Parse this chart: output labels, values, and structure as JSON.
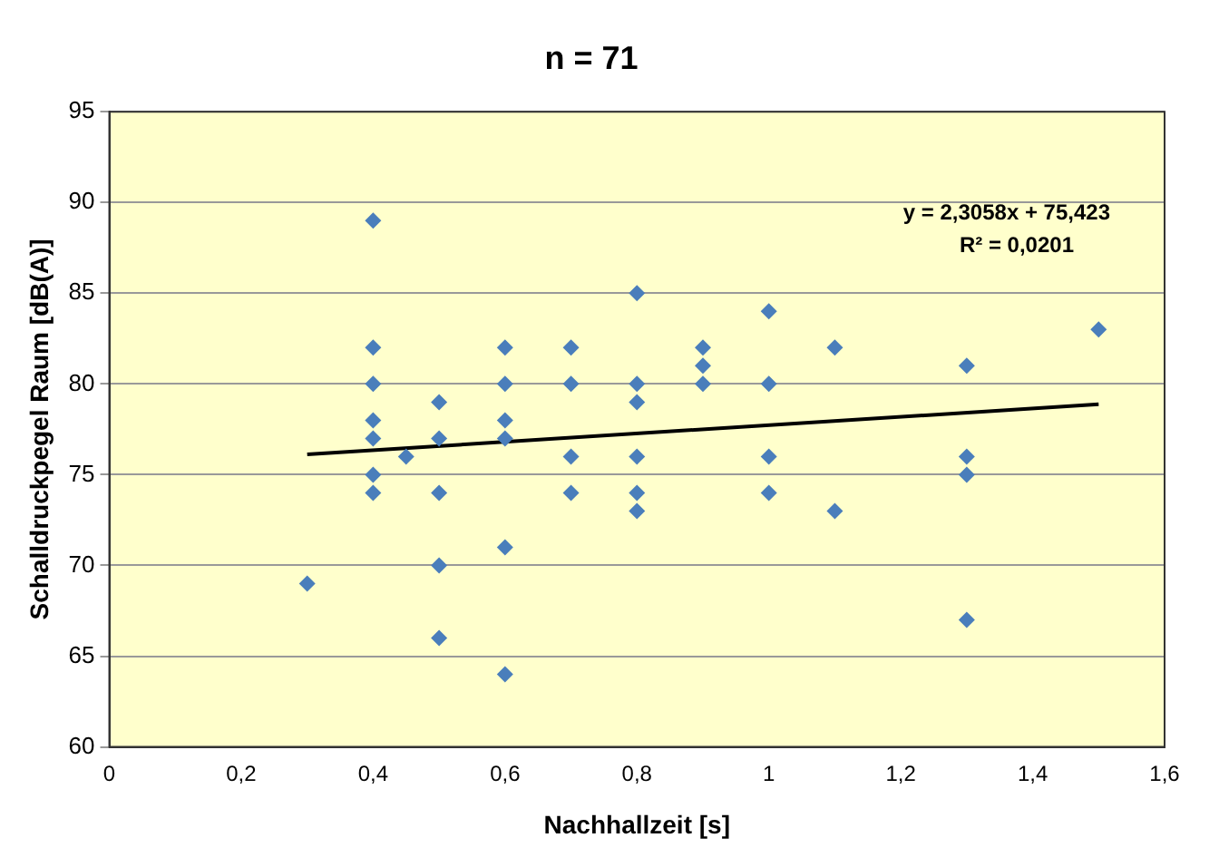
{
  "chart_data": {
    "type": "scatter",
    "title": "n = 71",
    "xlabel": "Nachhallzeit [s]",
    "ylabel": "Schalldruckpegel Raum [dB(A)]",
    "xlim": [
      0,
      1.6
    ],
    "xticks": [
      0,
      {
        "value": 0.2,
        "label": "0,2"
      },
      {
        "value": 0.4,
        "label": "0,4"
      },
      {
        "value": 0.6,
        "label": "0,6"
      },
      {
        "value": 0.8,
        "label": "0,8"
      },
      1,
      {
        "value": 1.2,
        "label": "1,2"
      },
      {
        "value": 1.4,
        "label": "1,4"
      },
      {
        "value": 1.6,
        "label": "1,6"
      }
    ],
    "ylim": [
      60,
      95
    ],
    "yticks": [
      60,
      65,
      70,
      75,
      80,
      85,
      90,
      95
    ],
    "grid": "y",
    "marker": "diamond",
    "legend": false,
    "annotations": [
      "y = 2,3058x + 75,423",
      "R² = 0,0201"
    ],
    "series": [
      {
        "color": "#4a7ebb",
        "x": [
          0.3,
          0.4,
          0.4,
          0.4,
          0.4,
          0.4,
          0.4,
          0.4,
          0.45,
          0.5,
          0.5,
          0.5,
          0.5,
          0.5,
          0.6,
          0.6,
          0.6,
          0.6,
          0.6,
          0.6,
          0.7,
          0.7,
          0.7,
          0.7,
          0.8,
          0.8,
          0.8,
          0.8,
          0.8,
          0.8,
          0.9,
          0.9,
          0.9,
          1,
          1,
          1,
          1,
          1.1,
          1.1,
          1.3,
          1.3,
          1.3,
          1.3,
          1.5
        ],
        "values": [
          69,
          89,
          82,
          80,
          78,
          77,
          75,
          74,
          76,
          79,
          77,
          74,
          70,
          66,
          82,
          80,
          78,
          77,
          71,
          64,
          82,
          80,
          76,
          74,
          85,
          80,
          79,
          76,
          74,
          73,
          82,
          81,
          80,
          84,
          80,
          76,
          74,
          82,
          73,
          81,
          76,
          75,
          67,
          83
        ]
      },
      {
        "type": "line",
        "color": "#000000",
        "marker": "none",
        "x": [
          0.3,
          1.5
        ],
        "values": [
          76.12,
          78.88
        ]
      }
    ]
  }
}
